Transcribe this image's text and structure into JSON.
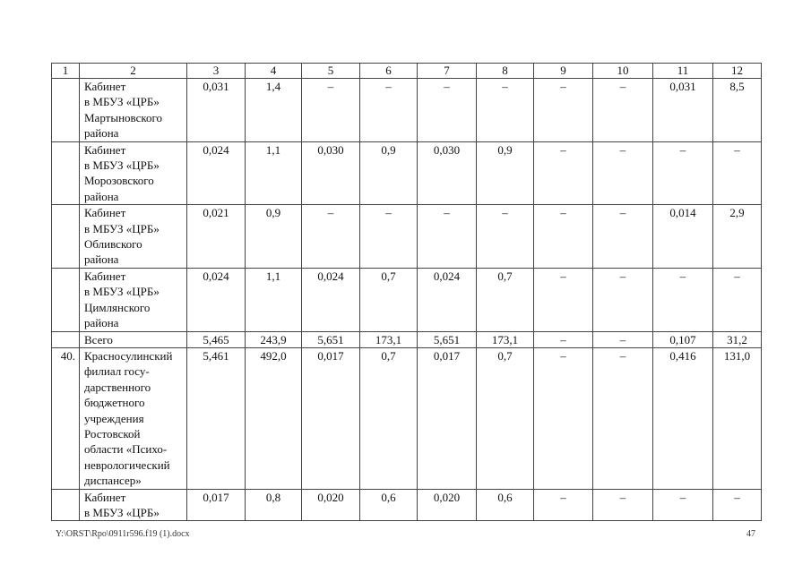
{
  "table": {
    "headers": [
      "1",
      "2",
      "3",
      "4",
      "5",
      "6",
      "7",
      "8",
      "9",
      "10",
      "11",
      "12"
    ],
    "rows": [
      {
        "num": "",
        "name": "Кабинет\nв МБУЗ «ЦРБ»\nМартыновского\nрайона",
        "values": [
          "0,031",
          "1,4",
          "–",
          "–",
          "–",
          "–",
          "–",
          "–",
          "0,031",
          "8,5"
        ]
      },
      {
        "num": "",
        "name": "Кабинет\nв МБУЗ «ЦРБ»\nМорозовского\nрайона",
        "values": [
          "0,024",
          "1,1",
          "0,030",
          "0,9",
          "0,030",
          "0,9",
          "–",
          "–",
          "–",
          "–"
        ]
      },
      {
        "num": "",
        "name": "Кабинет\nв МБУЗ «ЦРБ»\nОбливского\nрайона",
        "values": [
          "0,021",
          "0,9",
          "–",
          "–",
          "–",
          "–",
          "–",
          "–",
          "0,014",
          "2,9"
        ]
      },
      {
        "num": "",
        "name": "Кабинет\nв МБУЗ «ЦРБ»\nЦимлянского\nрайона",
        "values": [
          "0,024",
          "1,1",
          "0,024",
          "0,7",
          "0,024",
          "0,7",
          "–",
          "–",
          "–",
          "–"
        ]
      },
      {
        "num": "",
        "name": "Всего",
        "values": [
          "5,465",
          "243,9",
          "5,651",
          "173,1",
          "5,651",
          "173,1",
          "–",
          "–",
          "0,107",
          "31,2"
        ]
      },
      {
        "num": "40.",
        "name": "Красносулинский\nфилиал госу-\nдарственного\nбюджетного\nучреждения\nРостовской\nобласти «Психо-\nневрологический\nдиспансер»",
        "values": [
          "5,461",
          "492,0",
          "0,017",
          "0,7",
          "0,017",
          "0,7",
          "–",
          "–",
          "0,416",
          "131,0"
        ]
      },
      {
        "num": "",
        "name": "Кабинет\nв МБУЗ «ЦРБ»",
        "values": [
          "0,017",
          "0,8",
          "0,020",
          "0,6",
          "0,020",
          "0,6",
          "–",
          "–",
          "–",
          "–"
        ]
      }
    ]
  },
  "footer": {
    "path": "Y:\\ORST\\Rpo\\0911r596.f19 (1).docx",
    "page": "47"
  }
}
